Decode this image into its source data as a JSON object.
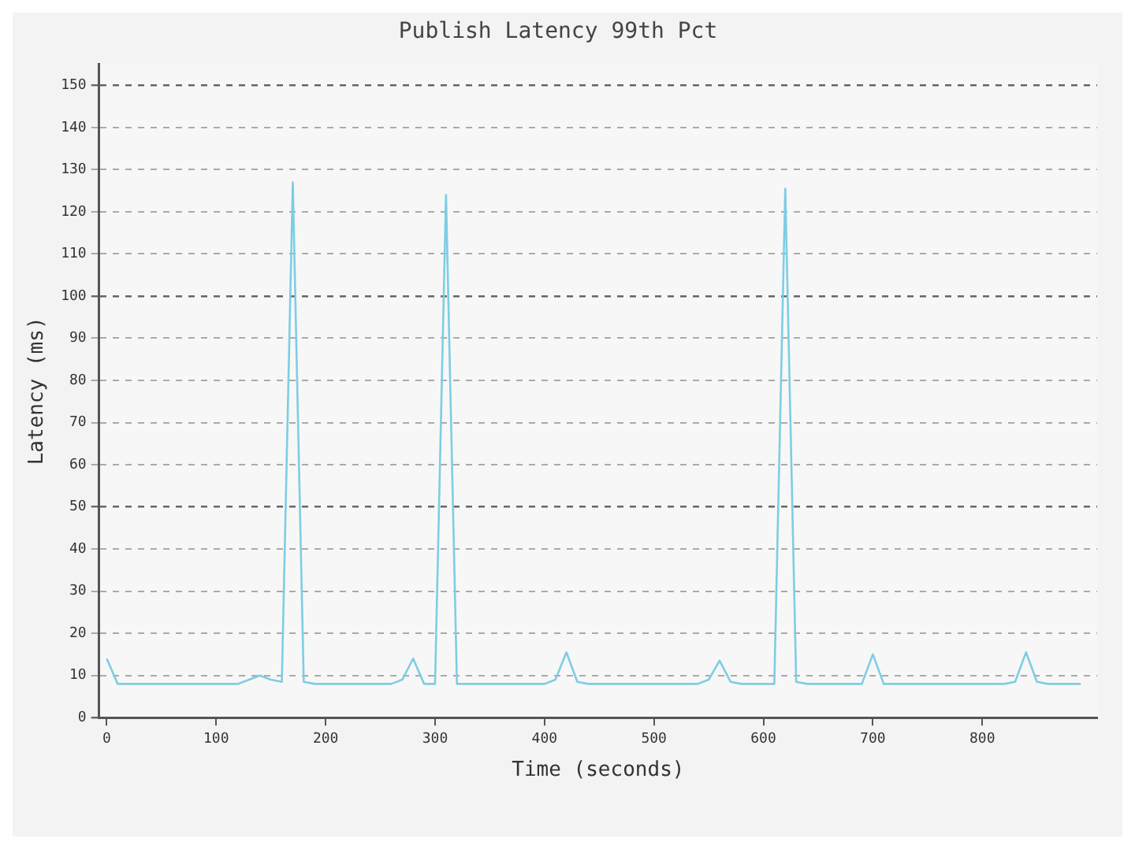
{
  "chart_data": {
    "type": "line",
    "title": "Publish Latency 99th Pct",
    "xlabel": "Time (seconds)",
    "ylabel": "Latency (ms)",
    "x": [
      0,
      10,
      20,
      30,
      40,
      50,
      60,
      70,
      80,
      90,
      100,
      110,
      120,
      130,
      140,
      150,
      160,
      170,
      180,
      190,
      200,
      210,
      220,
      230,
      240,
      250,
      260,
      270,
      280,
      290,
      300,
      310,
      320,
      330,
      340,
      350,
      360,
      370,
      380,
      390,
      400,
      410,
      420,
      430,
      440,
      450,
      460,
      470,
      480,
      490,
      500,
      510,
      520,
      530,
      540,
      550,
      560,
      570,
      580,
      590,
      600,
      610,
      620,
      630,
      640,
      650,
      660,
      670,
      680,
      690,
      700,
      710,
      720,
      730,
      740,
      750,
      760,
      770,
      780,
      790,
      800,
      810,
      820,
      830,
      840,
      850,
      860,
      870,
      880,
      890
    ],
    "series": [
      {
        "color": "#7ecde3",
        "values": [
          14,
          8,
          8,
          8,
          8,
          8,
          8,
          8,
          8,
          8,
          8,
          8,
          8,
          9,
          10,
          9,
          8.5,
          127,
          8.5,
          8,
          8,
          8,
          8,
          8,
          8,
          8,
          8,
          9,
          14,
          8,
          8,
          124,
          8,
          8,
          8,
          8,
          8,
          8,
          8,
          8,
          8,
          9,
          15.5,
          8.5,
          8,
          8,
          8,
          8,
          8,
          8,
          8,
          8,
          8,
          8,
          8,
          9,
          13.5,
          8.5,
          8,
          8,
          8,
          8,
          125.5,
          8.5,
          8,
          8,
          8,
          8,
          8,
          8,
          15,
          8,
          8,
          8,
          8,
          8,
          8,
          8,
          8,
          8,
          8,
          8,
          8,
          8.5,
          15.5,
          8.5,
          8,
          8,
          8,
          8
        ]
      }
    ],
    "xlim": [
      -7,
      905
    ],
    "xticks": [
      0,
      100,
      200,
      300,
      400,
      500,
      600,
      700,
      800
    ],
    "ylim": [
      0,
      155
    ],
    "yticks": [
      0,
      10,
      20,
      30,
      40,
      50,
      60,
      70,
      80,
      90,
      100,
      110,
      120,
      130,
      140,
      150
    ],
    "grid": "y",
    "legend": false,
    "marker": "none",
    "line_style": "solid"
  }
}
